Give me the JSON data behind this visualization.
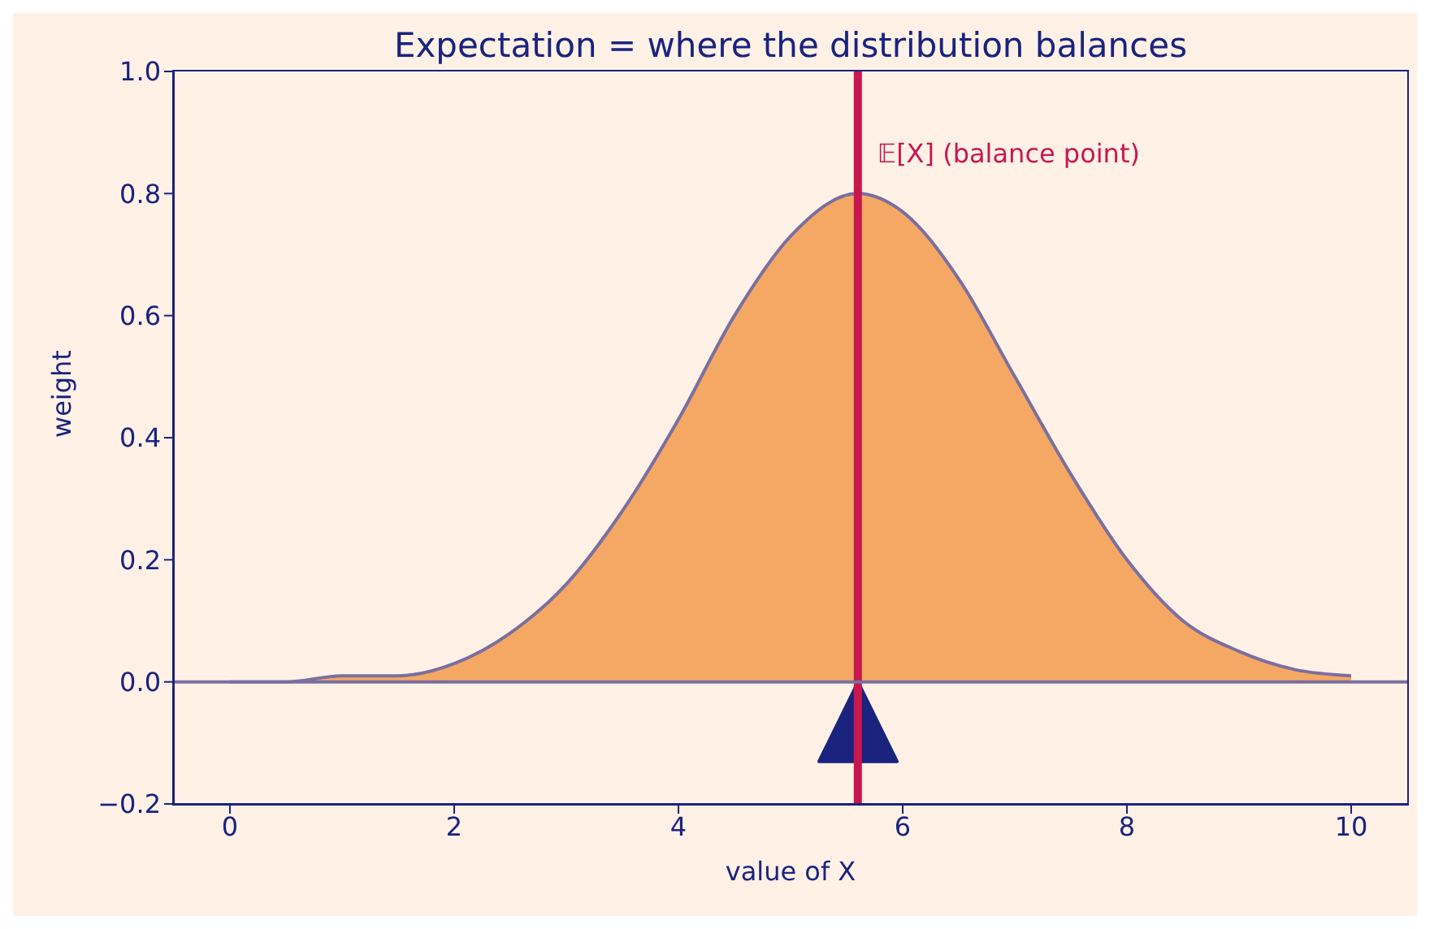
{
  "chart_data": {
    "type": "area",
    "title": "Expectation = where the distribution balances",
    "xlabel": "value of  X",
    "ylabel": "weight",
    "x": [
      0,
      0.5,
      1,
      1.5,
      2,
      2.5,
      3,
      3.5,
      4,
      4.5,
      5,
      5.6,
      6,
      6.5,
      7,
      7.5,
      8,
      8.5,
      9,
      9.5,
      10
    ],
    "series": [
      {
        "color": "#f5a864",
        "values": [
          0,
          0,
          0.01,
          0.01,
          0.03,
          0.08,
          0.16,
          0.28,
          0.43,
          0.6,
          0.73,
          0.8,
          0.77,
          0.66,
          0.5,
          0.34,
          0.2,
          0.1,
          0.05,
          0.02,
          0.01
        ]
      }
    ],
    "xlim": [
      -0.5,
      10.5
    ],
    "xticks": [
      0,
      2,
      4,
      6,
      8,
      10
    ],
    "ylim": [
      -0.2,
      1.0
    ],
    "yticks": [
      {
        "value": -0.2,
        "label": "−0.2"
      },
      {
        "value": 0,
        "label": "0.0"
      },
      {
        "value": 0.2,
        "label": "0.2"
      },
      {
        "value": 0.4,
        "label": "0.4"
      },
      {
        "value": 0.6,
        "label": "0.6"
      },
      {
        "value": 0.8,
        "label": "0.8"
      },
      {
        "value": 1.0,
        "label": "1.0"
      }
    ],
    "ref_lines": [
      {
        "axis": "x",
        "value": 5.6,
        "label": "𝔼[X]  (balance point)",
        "color": "#c8174f"
      },
      {
        "axis": "y",
        "value": 0,
        "color": "#7b6fa0"
      }
    ],
    "grid": false,
    "legend": false
  }
}
